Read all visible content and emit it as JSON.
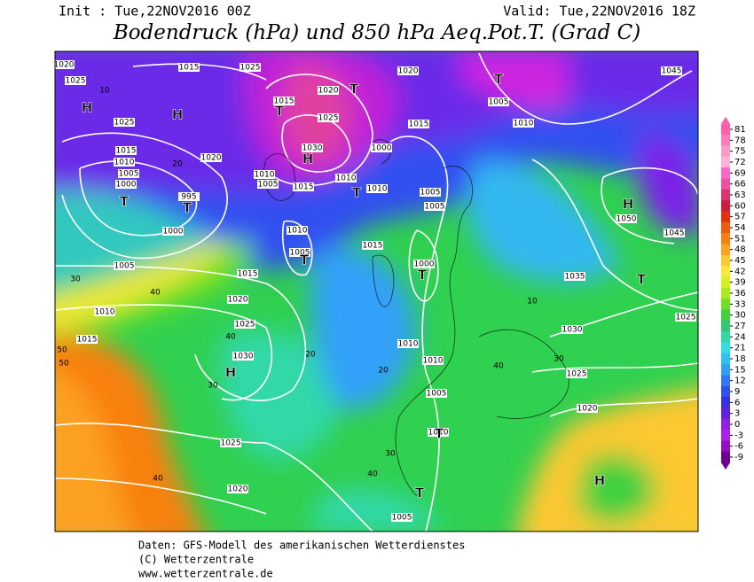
{
  "header": {
    "init": "Init : Tue,22NOV2016 00Z",
    "valid": "Valid: Tue,22NOV2016 18Z",
    "title": "Bodendruck (hPa) und 850 hPa Aeq.Pot.T. (Grad C)"
  },
  "map": {
    "pressure_labels": [
      "1020",
      "1015",
      "1025",
      "1020",
      "1025",
      "1030",
      "1010",
      "1015",
      "1020",
      "1025",
      "1025",
      "1020",
      "1015",
      "1010",
      "1005",
      "1000",
      "995",
      "1000",
      "1005",
      "1010",
      "1015",
      "1015",
      "1020",
      "1025",
      "1030",
      "1025",
      "1020",
      "1010",
      "1005",
      "1015",
      "1000",
      "1005",
      "1005",
      "1010",
      "1015",
      "1005",
      "1010",
      "1000",
      "1010",
      "1010",
      "1005",
      "1010",
      "1005",
      "1035",
      "1030",
      "1025",
      "1020",
      "1045",
      "1050",
      "1045",
      "1025",
      "1010",
      "1005",
      "1015"
    ],
    "centers": [
      "H",
      "H",
      "H",
      "H",
      "H",
      "H",
      "T",
      "T",
      "T",
      "T",
      "T",
      "T",
      "T",
      "T",
      "T",
      "T",
      "T"
    ],
    "temp_labels": [
      "10",
      "20",
      "30",
      "40",
      "50",
      "40",
      "30",
      "20",
      "40",
      "30",
      "50",
      "40",
      "20",
      "30",
      "10",
      "40"
    ]
  },
  "colorbar": {
    "ticks": [
      81,
      78,
      75,
      72,
      69,
      66,
      63,
      60,
      57,
      54,
      51,
      48,
      45,
      42,
      39,
      36,
      33,
      30,
      27,
      24,
      21,
      18,
      15,
      12,
      9,
      6,
      3,
      0,
      -3,
      -6,
      -9
    ],
    "colors": [
      "#ff5fa8",
      "#ff7ab8",
      "#ff9ac8",
      "#ffb4d6",
      "#ff66cc",
      "#f050a0",
      "#e03070",
      "#d01c38",
      "#e83010",
      "#f05a08",
      "#f88010",
      "#fca020",
      "#fdc830",
      "#f8e838",
      "#d8f020",
      "#a8ec20",
      "#70e020",
      "#40d040",
      "#30c870",
      "#30d8a8",
      "#30e0e0",
      "#30c0f0",
      "#30a0f8",
      "#3078f8",
      "#3050f0",
      "#3830e0",
      "#6020e0",
      "#9020e8",
      "#b020f0",
      "#9010c0",
      "#700090"
    ]
  },
  "footer": {
    "line1": "Daten: GFS-Modell des amerikanischen Wetterdienstes",
    "line2": "(C) Wetterzentrale",
    "line3": "www.wetterzentrale.de"
  }
}
